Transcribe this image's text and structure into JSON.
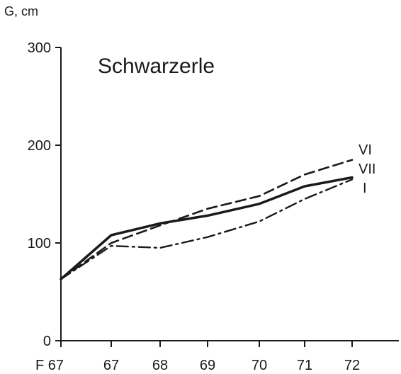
{
  "chart_data": {
    "type": "line",
    "title": "Schwarzerle",
    "ylabel": "G, cm",
    "xlabel": "",
    "categories": [
      "F 67",
      "67",
      "68",
      "69",
      "70",
      "71",
      "72"
    ],
    "ylim": [
      0,
      300
    ],
    "yticks": [
      0,
      100,
      200,
      300
    ],
    "grid": false,
    "legend": "inline labels at line ends (right)",
    "series": [
      {
        "name": "VI",
        "style": "dashed",
        "values": [
          63,
          100,
          118,
          135,
          148,
          170,
          185
        ]
      },
      {
        "name": "VII",
        "style": "solid",
        "values": [
          63,
          108,
          120,
          128,
          140,
          158,
          167
        ]
      },
      {
        "name": "I",
        "style": "dash-dot",
        "values": [
          63,
          97,
          95,
          106,
          122,
          145,
          165
        ]
      }
    ],
    "colors": {
      "line": "#1a1a1a",
      "axis": "#1a1a1a",
      "background": "#ffffff"
    }
  }
}
